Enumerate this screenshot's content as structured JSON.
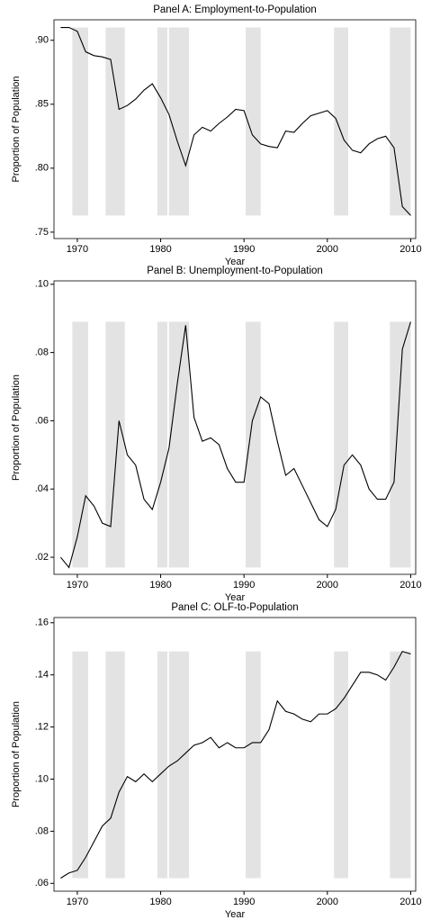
{
  "chart_data": [
    {
      "type": "line",
      "title": "Panel A: Employment-to-Population",
      "xlabel": "Year",
      "ylabel": "Proportion of Population",
      "x": [
        1968,
        1969,
        1970,
        1971,
        1972,
        1973,
        1974,
        1975,
        1976,
        1977,
        1978,
        1979,
        1980,
        1981,
        1982,
        1983,
        1984,
        1985,
        1986,
        1987,
        1988,
        1989,
        1990,
        1991,
        1992,
        1993,
        1994,
        1995,
        1996,
        1997,
        1998,
        1999,
        2000,
        2001,
        2002,
        2003,
        2004,
        2005,
        2006,
        2007,
        2008,
        2009,
        2010
      ],
      "series": [
        {
          "color": "#000000",
          "values": [
            0.91,
            0.91,
            0.907,
            0.891,
            0.888,
            0.887,
            0.885,
            0.846,
            0.849,
            0.854,
            0.861,
            0.866,
            0.855,
            0.842,
            0.821,
            0.802,
            0.826,
            0.832,
            0.829,
            0.835,
            0.84,
            0.846,
            0.845,
            0.826,
            0.819,
            0.817,
            0.816,
            0.829,
            0.828,
            0.835,
            0.841,
            0.843,
            0.845,
            0.839,
            0.822,
            0.814,
            0.812,
            0.819,
            0.823,
            0.825,
            0.816,
            0.77,
            0.763
          ]
        }
      ],
      "recessions": [
        [
          1969.4,
          1971.3
        ],
        [
          1973.4,
          1975.7
        ],
        [
          1979.6,
          1980.8
        ],
        [
          1981.0,
          1983.4
        ],
        [
          1990.2,
          1992.0
        ],
        [
          2000.8,
          2002.5
        ],
        [
          2007.5,
          2010.0
        ]
      ],
      "recession_color": "#d9d9d9",
      "xlim": [
        1967.2,
        2010.6
      ],
      "xticks": [
        1970,
        1980,
        1990,
        2000,
        2010
      ],
      "ylim": [
        0.745,
        0.916
      ],
      "yticks": [
        {
          "value": 0.75,
          "label": ".75"
        },
        {
          "value": 0.8,
          "label": ".80"
        },
        {
          "value": 0.85,
          "label": ".85"
        },
        {
          "value": 0.9,
          "label": ".90"
        }
      ]
    },
    {
      "type": "line",
      "title": "Panel B: Unemployment-to-Population",
      "xlabel": "Year",
      "ylabel": "Proportion of Population",
      "x": [
        1968,
        1969,
        1970,
        1971,
        1972,
        1973,
        1974,
        1975,
        1976,
        1977,
        1978,
        1979,
        1980,
        1981,
        1982,
        1983,
        1984,
        1985,
        1986,
        1987,
        1988,
        1989,
        1990,
        1991,
        1992,
        1993,
        1994,
        1995,
        1996,
        1997,
        1998,
        1999,
        2000,
        2001,
        2002,
        2003,
        2004,
        2005,
        2006,
        2007,
        2008,
        2009,
        2010
      ],
      "series": [
        {
          "color": "#000000",
          "values": [
            0.02,
            0.017,
            0.026,
            0.038,
            0.035,
            0.03,
            0.029,
            0.06,
            0.05,
            0.047,
            0.037,
            0.034,
            0.042,
            0.052,
            0.071,
            0.088,
            0.061,
            0.054,
            0.055,
            0.053,
            0.046,
            0.042,
            0.042,
            0.06,
            0.067,
            0.065,
            0.054,
            0.044,
            0.046,
            0.041,
            0.036,
            0.031,
            0.029,
            0.034,
            0.047,
            0.05,
            0.047,
            0.04,
            0.037,
            0.037,
            0.042,
            0.081,
            0.089
          ]
        }
      ],
      "recessions": [
        [
          1969.4,
          1971.3
        ],
        [
          1973.4,
          1975.7
        ],
        [
          1979.6,
          1980.8
        ],
        [
          1981.0,
          1983.4
        ],
        [
          1990.2,
          1992.0
        ],
        [
          2000.8,
          2002.5
        ],
        [
          2007.5,
          2010.0
        ]
      ],
      "recession_color": "#d9d9d9",
      "xlim": [
        1967.2,
        2010.6
      ],
      "xticks": [
        1970,
        1980,
        1990,
        2000,
        2010
      ],
      "ylim": [
        0.015,
        0.101
      ],
      "yticks": [
        {
          "value": 0.02,
          "label": ".02"
        },
        {
          "value": 0.04,
          "label": ".04"
        },
        {
          "value": 0.06,
          "label": ".06"
        },
        {
          "value": 0.08,
          "label": ".08"
        },
        {
          "value": 0.1,
          "label": ".10"
        }
      ]
    },
    {
      "type": "line",
      "title": "Panel C: OLF-to-Population",
      "xlabel": "Year",
      "ylabel": "Proportion of Population",
      "x": [
        1968,
        1969,
        1970,
        1971,
        1972,
        1973,
        1974,
        1975,
        1976,
        1977,
        1978,
        1979,
        1980,
        1981,
        1982,
        1983,
        1984,
        1985,
        1986,
        1987,
        1988,
        1989,
        1990,
        1991,
        1992,
        1993,
        1994,
        1995,
        1996,
        1997,
        1998,
        1999,
        2000,
        2001,
        2002,
        2003,
        2004,
        2005,
        2006,
        2007,
        2008,
        2009,
        2010
      ],
      "series": [
        {
          "color": "#000000",
          "values": [
            0.062,
            0.064,
            0.065,
            0.07,
            0.076,
            0.082,
            0.085,
            0.095,
            0.101,
            0.099,
            0.102,
            0.099,
            0.102,
            0.105,
            0.107,
            0.11,
            0.113,
            0.114,
            0.116,
            0.112,
            0.114,
            0.112,
            0.112,
            0.114,
            0.114,
            0.119,
            0.13,
            0.126,
            0.125,
            0.123,
            0.122,
            0.125,
            0.125,
            0.127,
            0.131,
            0.136,
            0.141,
            0.141,
            0.14,
            0.138,
            0.143,
            0.149,
            0.148
          ]
        }
      ],
      "recessions": [
        [
          1969.4,
          1971.3
        ],
        [
          1973.4,
          1975.7
        ],
        [
          1979.6,
          1980.8
        ],
        [
          1981.0,
          1983.4
        ],
        [
          1990.2,
          1992.0
        ],
        [
          2000.8,
          2002.5
        ],
        [
          2007.5,
          2010.0
        ]
      ],
      "recession_color": "#d9d9d9",
      "xlim": [
        1967.2,
        2010.6
      ],
      "xticks": [
        1970,
        1980,
        1990,
        2000,
        2010
      ],
      "ylim": [
        0.057,
        0.162
      ],
      "yticks": [
        {
          "value": 0.06,
          "label": ".06"
        },
        {
          "value": 0.08,
          "label": ".08"
        },
        {
          "value": 0.1,
          "label": ".10"
        },
        {
          "value": 0.12,
          "label": ".12"
        },
        {
          "value": 0.14,
          "label": ".14"
        },
        {
          "value": 0.16,
          "label": ".16"
        }
      ]
    }
  ]
}
